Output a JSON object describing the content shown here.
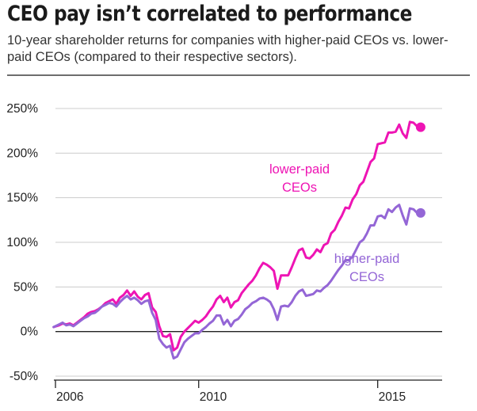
{
  "header": {
    "title": "CEO pay isn’t correlated to performance",
    "subtitle": "10-year shareholder returns for companies with higher-paid CEOs vs. lower-paid CEOs (compared to their respective sectors)."
  },
  "chart_data": {
    "type": "line",
    "title": "CEO pay isn’t correlated to performance",
    "subtitle": "10-year shareholder returns for companies with higher-paid CEOs vs. lower-paid CEOs (compared to their respective sectors).",
    "xlabel": "",
    "ylabel": "",
    "x_unit": "year",
    "xlim": [
      2006,
      2016.8
    ],
    "ylim": [
      -50,
      250
    ],
    "x_ticks": [
      2006,
      2010,
      2015
    ],
    "x_tick_labels": [
      "2006",
      "2010",
      "2015"
    ],
    "y_ticks": [
      -50,
      0,
      50,
      100,
      150,
      200,
      250
    ],
    "y_tick_labels": [
      "-50%",
      "0%",
      "50%",
      "100%",
      "150%",
      "200%",
      "250%"
    ],
    "grid": "horizontal",
    "legend": "inline labels",
    "colors": {
      "lower": "#ee14b4",
      "higher": "#9466d6",
      "axis": "#222222",
      "grid": "#cccccc"
    },
    "series": [
      {
        "name": "lower-paid CEOs",
        "label_lines": [
          "lower-paid",
          "CEOs"
        ],
        "color": "#ee14b4",
        "end_marker": true,
        "points": [
          [
            2005.95,
            5
          ],
          [
            2006.1,
            7
          ],
          [
            2006.2,
            9
          ],
          [
            2006.3,
            8
          ],
          [
            2006.4,
            9
          ],
          [
            2006.5,
            7
          ],
          [
            2006.6,
            10
          ],
          [
            2006.7,
            13
          ],
          [
            2006.8,
            16
          ],
          [
            2006.9,
            20
          ],
          [
            2007.0,
            22
          ],
          [
            2007.1,
            23
          ],
          [
            2007.2,
            25
          ],
          [
            2007.3,
            28
          ],
          [
            2007.4,
            32
          ],
          [
            2007.5,
            34
          ],
          [
            2007.6,
            36
          ],
          [
            2007.7,
            31
          ],
          [
            2007.8,
            38
          ],
          [
            2007.9,
            41
          ],
          [
            2008.0,
            46
          ],
          [
            2008.1,
            40
          ],
          [
            2008.2,
            45
          ],
          [
            2008.3,
            39
          ],
          [
            2008.4,
            36
          ],
          [
            2008.5,
            41
          ],
          [
            2008.6,
            43
          ],
          [
            2008.7,
            27
          ],
          [
            2008.8,
            22
          ],
          [
            2008.9,
            6
          ],
          [
            2009.0,
            -5
          ],
          [
            2009.1,
            -6
          ],
          [
            2009.2,
            -3
          ],
          [
            2009.3,
            -21
          ],
          [
            2009.4,
            -18
          ],
          [
            2009.5,
            -6
          ],
          [
            2009.6,
            0
          ],
          [
            2009.7,
            4
          ],
          [
            2009.8,
            8
          ],
          [
            2009.9,
            12
          ],
          [
            2010.0,
            10
          ],
          [
            2010.1,
            13
          ],
          [
            2010.2,
            17
          ],
          [
            2010.3,
            23
          ],
          [
            2010.4,
            28
          ],
          [
            2010.5,
            36
          ],
          [
            2010.6,
            40
          ],
          [
            2010.7,
            33
          ],
          [
            2010.8,
            38
          ],
          [
            2010.9,
            27
          ],
          [
            2011.0,
            33
          ],
          [
            2011.1,
            35
          ],
          [
            2011.2,
            43
          ],
          [
            2011.3,
            48
          ],
          [
            2011.4,
            53
          ],
          [
            2011.5,
            57
          ],
          [
            2011.6,
            63
          ],
          [
            2011.7,
            71
          ],
          [
            2011.8,
            77
          ],
          [
            2011.9,
            75
          ],
          [
            2012.0,
            72
          ],
          [
            2012.1,
            68
          ],
          [
            2012.2,
            48
          ],
          [
            2012.3,
            63
          ],
          [
            2012.4,
            63
          ],
          [
            2012.5,
            63
          ],
          [
            2012.6,
            72
          ],
          [
            2012.7,
            82
          ],
          [
            2012.8,
            91
          ],
          [
            2012.9,
            93
          ],
          [
            2013.0,
            83
          ],
          [
            2013.1,
            82
          ],
          [
            2013.2,
            86
          ],
          [
            2013.3,
            92
          ],
          [
            2013.4,
            89
          ],
          [
            2013.5,
            97
          ],
          [
            2013.6,
            99
          ],
          [
            2013.7,
            110
          ],
          [
            2013.8,
            114
          ],
          [
            2013.9,
            123
          ],
          [
            2014.0,
            130
          ],
          [
            2014.1,
            139
          ],
          [
            2014.2,
            138
          ],
          [
            2014.3,
            148
          ],
          [
            2014.4,
            154
          ],
          [
            2014.5,
            164
          ],
          [
            2014.6,
            168
          ],
          [
            2014.7,
            179
          ],
          [
            2014.8,
            190
          ],
          [
            2014.9,
            194
          ],
          [
            2015.0,
            210
          ],
          [
            2015.1,
            211
          ],
          [
            2015.2,
            212
          ],
          [
            2015.3,
            223
          ],
          [
            2015.4,
            223
          ],
          [
            2015.5,
            224
          ],
          [
            2015.6,
            232
          ],
          [
            2015.7,
            222
          ],
          [
            2015.8,
            217
          ],
          [
            2015.9,
            235
          ],
          [
            2016.0,
            234
          ],
          [
            2016.1,
            230
          ],
          [
            2016.2,
            229
          ]
        ]
      },
      {
        "name": "higher-paid CEOs",
        "label_lines": [
          "higher-paid",
          "CEOs"
        ],
        "color": "#9466d6",
        "end_marker": true,
        "points": [
          [
            2005.95,
            5
          ],
          [
            2006.1,
            8
          ],
          [
            2006.2,
            10
          ],
          [
            2006.3,
            7
          ],
          [
            2006.4,
            8
          ],
          [
            2006.5,
            6
          ],
          [
            2006.6,
            9
          ],
          [
            2006.7,
            12
          ],
          [
            2006.8,
            15
          ],
          [
            2006.9,
            17
          ],
          [
            2007.0,
            20
          ],
          [
            2007.1,
            21
          ],
          [
            2007.2,
            24
          ],
          [
            2007.3,
            28
          ],
          [
            2007.4,
            30
          ],
          [
            2007.5,
            32
          ],
          [
            2007.6,
            31
          ],
          [
            2007.7,
            28
          ],
          [
            2007.8,
            33
          ],
          [
            2007.9,
            37
          ],
          [
            2008.0,
            40
          ],
          [
            2008.1,
            36
          ],
          [
            2008.2,
            38
          ],
          [
            2008.3,
            35
          ],
          [
            2008.4,
            31
          ],
          [
            2008.5,
            34
          ],
          [
            2008.6,
            35
          ],
          [
            2008.7,
            21
          ],
          [
            2008.8,
            13
          ],
          [
            2008.9,
            -8
          ],
          [
            2009.0,
            -14
          ],
          [
            2009.1,
            -18
          ],
          [
            2009.2,
            -16
          ],
          [
            2009.3,
            -30
          ],
          [
            2009.4,
            -28
          ],
          [
            2009.5,
            -20
          ],
          [
            2009.6,
            -12
          ],
          [
            2009.7,
            -8
          ],
          [
            2009.8,
            -5
          ],
          [
            2009.9,
            -2
          ],
          [
            2010.0,
            -2
          ],
          [
            2010.1,
            2
          ],
          [
            2010.2,
            5
          ],
          [
            2010.3,
            9
          ],
          [
            2010.4,
            12
          ],
          [
            2010.5,
            18
          ],
          [
            2010.6,
            18
          ],
          [
            2010.7,
            8
          ],
          [
            2010.8,
            13
          ],
          [
            2010.9,
            6
          ],
          [
            2011.0,
            12
          ],
          [
            2011.1,
            14
          ],
          [
            2011.2,
            19
          ],
          [
            2011.3,
            25
          ],
          [
            2011.4,
            28
          ],
          [
            2011.5,
            32
          ],
          [
            2011.6,
            34
          ],
          [
            2011.7,
            37
          ],
          [
            2011.8,
            38
          ],
          [
            2011.9,
            36
          ],
          [
            2012.0,
            33
          ],
          [
            2012.1,
            25
          ],
          [
            2012.2,
            13
          ],
          [
            2012.3,
            28
          ],
          [
            2012.4,
            29
          ],
          [
            2012.5,
            28
          ],
          [
            2012.6,
            33
          ],
          [
            2012.7,
            40
          ],
          [
            2012.8,
            45
          ],
          [
            2012.9,
            47
          ],
          [
            2013.0,
            40
          ],
          [
            2013.1,
            41
          ],
          [
            2013.2,
            42
          ],
          [
            2013.3,
            46
          ],
          [
            2013.4,
            45
          ],
          [
            2013.5,
            49
          ],
          [
            2013.6,
            52
          ],
          [
            2013.7,
            57
          ],
          [
            2013.8,
            63
          ],
          [
            2013.9,
            69
          ],
          [
            2014.0,
            74
          ],
          [
            2014.1,
            80
          ],
          [
            2014.2,
            80
          ],
          [
            2014.3,
            84
          ],
          [
            2014.4,
            92
          ],
          [
            2014.5,
            100
          ],
          [
            2014.6,
            103
          ],
          [
            2014.7,
            110
          ],
          [
            2014.8,
            119
          ],
          [
            2014.9,
            119
          ],
          [
            2015.0,
            129
          ],
          [
            2015.1,
            130
          ],
          [
            2015.2,
            127
          ],
          [
            2015.3,
            137
          ],
          [
            2015.4,
            134
          ],
          [
            2015.5,
            139
          ],
          [
            2015.6,
            142
          ],
          [
            2015.7,
            130
          ],
          [
            2015.8,
            120
          ],
          [
            2015.9,
            138
          ],
          [
            2016.0,
            137
          ],
          [
            2016.1,
            133
          ],
          [
            2016.2,
            133
          ]
        ]
      }
    ]
  }
}
